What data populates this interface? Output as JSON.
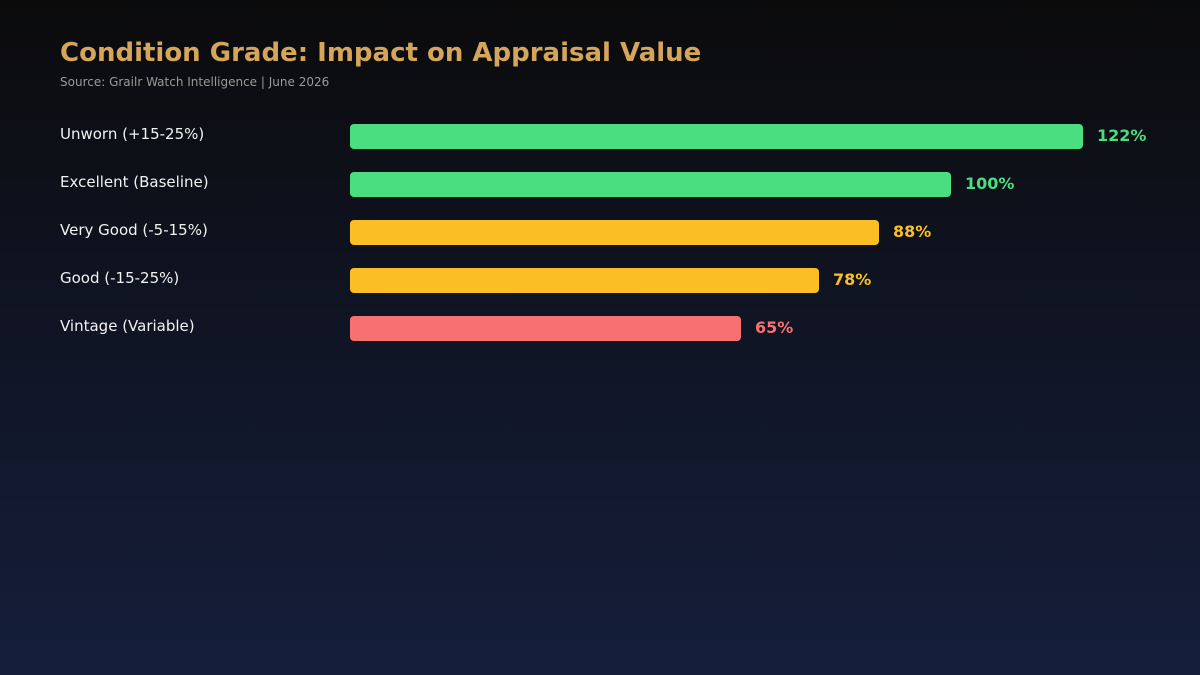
{
  "chart_data": {
    "type": "bar",
    "orientation": "horizontal",
    "title": "Condition Grade: Impact on Appraisal Value",
    "subtitle": "Source: Grailr Watch Intelligence | June 2026",
    "categories": [
      "Unworn (+15-25%)",
      "Excellent (Baseline)",
      "Very Good (-5-15%)",
      "Good (-15-25%)",
      "Vintage (Variable)"
    ],
    "values": [
      122,
      100,
      88,
      78,
      65
    ],
    "value_labels": [
      "122%",
      "100%",
      "88%",
      "78%",
      "65%"
    ],
    "colors": [
      "#4ade80",
      "#4ade80",
      "#fbbf24",
      "#fbbf24",
      "#f87171"
    ],
    "xlim": [
      0,
      122
    ],
    "grid": false,
    "legend": "none"
  }
}
